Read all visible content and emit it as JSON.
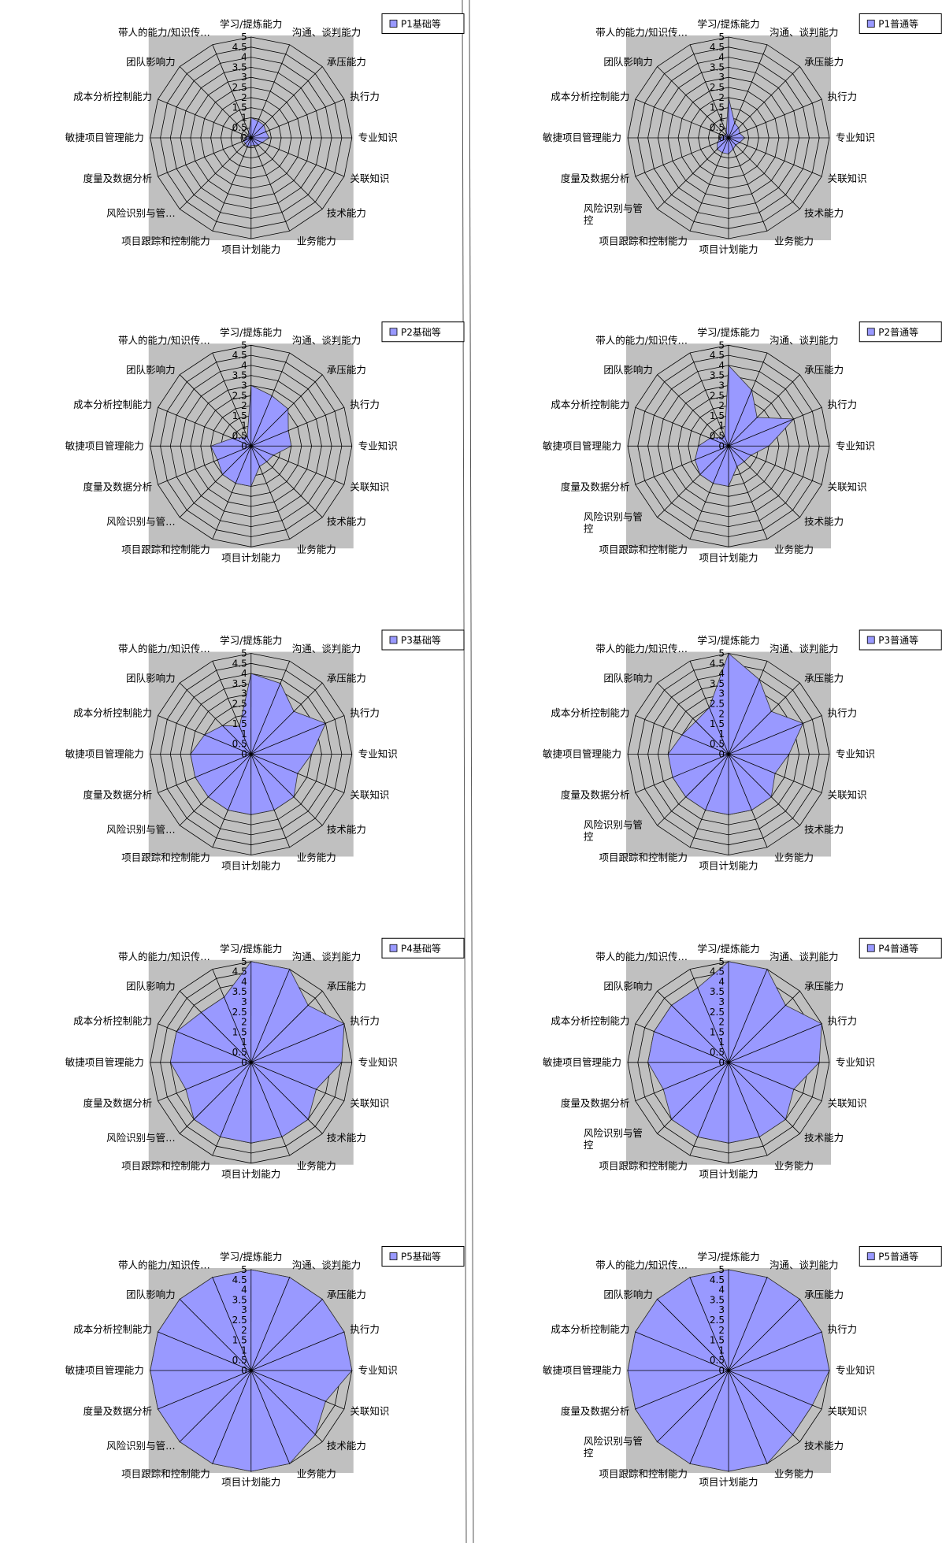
{
  "axes": [
    "学习/提炼能力",
    "沟通、谈判能力",
    "承压能力",
    "执行力",
    "专业知识",
    "关联知识",
    "技术能力",
    "业务能力",
    "项目计划能力",
    "项目跟踪和控制能力",
    "风险识别与管…",
    "度量及数据分析",
    "敏捷项目管理能力",
    "成本分析控制能力",
    "团队影响力",
    "带人的能力/知识传…"
  ],
  "axes_right": [
    "学习/提炼能力",
    "沟通、谈判能力",
    "承压能力",
    "执行力",
    "专业知识",
    "关联知识",
    "技术能力",
    "业务能力",
    "项目计划能力",
    "项目跟踪和控制能力",
    "风险识别与管控",
    "度量及数据分析",
    "敏捷项目管理能力",
    "成本分析控制能力",
    "团队影响力",
    "带人的能力/知识传…"
  ],
  "ticks": [
    "0",
    "0.5",
    "1",
    "1.5",
    "2",
    "2.5",
    "3",
    "3.5",
    "4",
    "4.5",
    "5"
  ],
  "colors": {
    "fill": "#9999ff",
    "plot_bg": "#c0c0c0",
    "line": "#000000"
  },
  "chart_data": [
    {
      "type": "radar",
      "legend": "P1基础等",
      "rmax": 5,
      "values": [
        1.0,
        0.9,
        0.9,
        0.8,
        0.9,
        0.6,
        0.5,
        0.4,
        0.4,
        0.5,
        0.4,
        0.4,
        0.3,
        0.2,
        0.2,
        0.3
      ]
    },
    {
      "type": "radar",
      "legend": "P1普通等",
      "rmax": 5,
      "values": [
        2.0,
        0.8,
        0.7,
        0.6,
        0.8,
        0.6,
        0.5,
        0.6,
        0.8,
        0.8,
        0.8,
        0.6,
        0.4,
        0.3,
        0.2,
        0.3
      ]
    },
    {
      "type": "radar",
      "legend": "P2基础等",
      "rmax": 5,
      "values": [
        3.0,
        2.7,
        2.6,
        2.0,
        2.0,
        1.2,
        1.1,
        1.1,
        2.0,
        2.0,
        2.0,
        1.8,
        2.0,
        1.0,
        0.6,
        0.5
      ]
    },
    {
      "type": "radar",
      "legend": "P2普通等",
      "rmax": 5,
      "values": [
        4.0,
        3.0,
        2.0,
        3.5,
        2.0,
        1.2,
        1.1,
        1.1,
        2.0,
        2.0,
        2.0,
        1.8,
        1.5,
        1.0,
        0.6,
        0.5
      ]
    },
    {
      "type": "radar",
      "legend": "P3基础等",
      "rmax": 5,
      "values": [
        4.0,
        3.8,
        3.0,
        4.0,
        3.0,
        2.5,
        3.0,
        3.0,
        3.0,
        3.0,
        3.0,
        3.0,
        3.0,
        2.5,
        2.0,
        1.5
      ]
    },
    {
      "type": "radar",
      "legend": "P3普通等",
      "rmax": 5,
      "values": [
        5.0,
        4.0,
        3.0,
        4.0,
        3.0,
        2.5,
        3.0,
        3.0,
        3.0,
        3.0,
        3.0,
        3.0,
        3.0,
        2.5,
        2.3,
        2.5
      ]
    },
    {
      "type": "radar",
      "legend": "P4基础等",
      "rmax": 5,
      "values": [
        5.0,
        5.0,
        4.0,
        5.0,
        4.5,
        3.5,
        4.0,
        4.0,
        4.0,
        4.0,
        4.0,
        3.5,
        4.0,
        4.0,
        3.5,
        3.5
      ]
    },
    {
      "type": "radar",
      "legend": "P4普通等",
      "rmax": 5,
      "values": [
        5.0,
        5.0,
        4.0,
        5.0,
        4.5,
        3.5,
        4.0,
        4.0,
        4.0,
        4.0,
        4.0,
        3.5,
        4.0,
        4.0,
        4.0,
        4.0
      ]
    },
    {
      "type": "radar",
      "legend": "P5基础等",
      "rmax": 5,
      "values": [
        5.0,
        5.0,
        5.0,
        5.0,
        5.0,
        4.0,
        4.5,
        5.0,
        5.0,
        5.0,
        5.0,
        5.0,
        5.0,
        5.0,
        5.0,
        5.0
      ]
    },
    {
      "type": "radar",
      "legend": "P5普通等",
      "rmax": 5,
      "values": [
        5.0,
        5.0,
        5.0,
        5.0,
        5.0,
        4.5,
        4.5,
        5.0,
        5.0,
        5.0,
        5.0,
        5.0,
        5.0,
        5.0,
        5.0,
        5.0
      ]
    }
  ]
}
